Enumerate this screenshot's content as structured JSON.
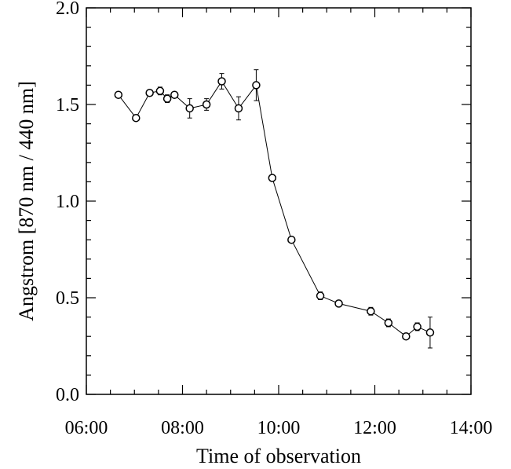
{
  "chart_data": {
    "type": "line",
    "title": "",
    "xlabel": "Time of observation",
    "ylabel": "Angstrom [870 nm / 440 nm]",
    "xlim": [
      "06:00",
      "14:00"
    ],
    "ylim": [
      0.0,
      2.0
    ],
    "x_ticks": [
      "06:00",
      "08:00",
      "10:00",
      "12:00",
      "14:00"
    ],
    "y_ticks": [
      "0.0",
      "0.5",
      "1.0",
      "1.5",
      "2.0"
    ],
    "grid": false,
    "marker": "open-circle",
    "series": [
      {
        "x": [
          "06:40",
          "07:02",
          "07:19",
          "07:32",
          "07:41",
          "07:50",
          "08:09",
          "08:30",
          "08:49",
          "09:10",
          "09:32",
          "09:52",
          "10:16",
          "10:52",
          "11:15",
          "11:55",
          "12:17",
          "12:39",
          "12:53",
          "13:09"
        ],
        "y": [
          1.55,
          1.43,
          1.56,
          1.57,
          1.53,
          1.55,
          1.48,
          1.5,
          1.62,
          1.48,
          1.6,
          1.12,
          0.8,
          0.51,
          0.47,
          0.43,
          0.37,
          0.3,
          0.35,
          0.32
        ],
        "y_err": [
          0.01,
          0.01,
          0.01,
          0.02,
          0.02,
          0.01,
          0.05,
          0.03,
          0.04,
          0.06,
          0.08,
          0.01,
          0.01,
          0.02,
          0.01,
          0.02,
          0.02,
          0.01,
          0.02,
          0.08
        ]
      }
    ]
  }
}
